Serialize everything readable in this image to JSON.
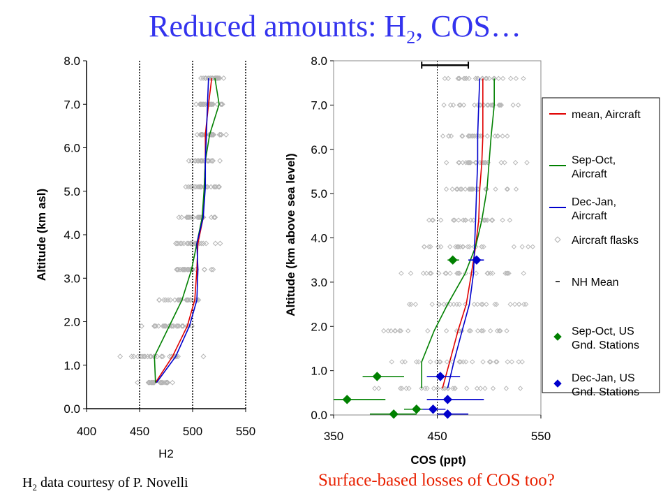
{
  "slide": {
    "title_main": "Reduced amounts: H",
    "title_sub": "2",
    "title_tail": ", COS…",
    "credit_h": "H",
    "credit_sub": "2",
    "credit_tail": " data courtesy of P. Novelli",
    "question": "Surface-based losses of COS too?"
  },
  "chart_data": [
    {
      "type": "line",
      "xlabel": "H2",
      "ylabel": "Altitude (km asl)",
      "xlim": [
        400,
        550
      ],
      "ylim": [
        0,
        8
      ],
      "xticks": [
        "400",
        "450",
        "500",
        "550"
      ],
      "yticks": [
        "0.0",
        "1.0",
        "2.0",
        "3.0",
        "4.0",
        "5.0",
        "6.0",
        "7.0",
        "8.0"
      ],
      "vlines": [
        450,
        500,
        550
      ],
      "series": [
        {
          "color": "#e00000",
          "y": [
            0.6,
            1.2,
            1.9,
            2.5,
            3.2,
            3.8,
            4.4,
            5.1,
            5.7,
            6.3,
            7.0,
            7.6
          ],
          "x": [
            465,
            481,
            495,
            502,
            504,
            505,
            510,
            511,
            512,
            512,
            515,
            518
          ]
        },
        {
          "color": "#008000",
          "y": [
            0.6,
            1.2,
            1.9,
            2.5,
            3.2,
            3.8,
            4.4,
            5.1,
            5.7,
            6.3,
            7.0,
            7.6
          ],
          "x": [
            465,
            464,
            478,
            490,
            499,
            504,
            509,
            511,
            512,
            516,
            525,
            521
          ]
        },
        {
          "color": "#0000cc",
          "y": [
            0.6,
            1.2,
            1.9,
            2.5,
            3.2,
            3.8,
            4.4,
            5.1,
            5.7,
            6.3,
            7.0,
            7.6
          ],
          "x": [
            466,
            484,
            497,
            504,
            505,
            504,
            510,
            512,
            512,
            513,
            514,
            515
          ]
        }
      ],
      "flask_levels": [
        0.6,
        1.2,
        1.9,
        2.5,
        3.2,
        3.8,
        4.4,
        5.1,
        5.7,
        6.3,
        7.0,
        7.6
      ],
      "flask_centers": [
        470,
        470,
        478,
        490,
        500,
        503,
        508,
        511,
        512,
        515,
        516,
        518
      ],
      "flask_spread": [
        30,
        40,
        28,
        25,
        22,
        24,
        26,
        20,
        18,
        20,
        16,
        12
      ]
    },
    {
      "type": "line",
      "xlabel": "COS (ppt)",
      "ylabel": "Altitude (km above sea level)",
      "xlim": [
        350,
        550
      ],
      "ylim": [
        0,
        8
      ],
      "xticks": [
        "350",
        "450",
        "550"
      ],
      "yticks": [
        "0.0",
        "1.0",
        "2.0",
        "3.0",
        "4.0",
        "5.0",
        "6.0",
        "7.0",
        "8.0"
      ],
      "vline": 450,
      "nh_mean_bar": {
        "y": 7.9,
        "x": [
          435,
          480
        ]
      },
      "series": [
        {
          "name": "mean, Aircraft",
          "color": "#e00000",
          "y": [
            0.6,
            1.2,
            1.9,
            2.5,
            3.2,
            3.8,
            4.4,
            5.1,
            5.7,
            6.3,
            7.0,
            7.6
          ],
          "x": [
            455,
            462,
            470,
            478,
            483,
            487,
            490,
            491,
            493,
            494,
            494,
            494
          ]
        },
        {
          "name": "Sep-Oct, Aircraft",
          "color": "#008000",
          "y": [
            0.6,
            1.2,
            1.9,
            2.5,
            3.2,
            3.8,
            4.4,
            5.1,
            5.7,
            6.3,
            7.0,
            7.6
          ],
          "x": [
            435,
            435,
            447,
            460,
            477,
            487,
            493,
            498,
            500,
            502,
            505,
            505
          ]
        },
        {
          "name": "Dec-Jan, Aircraft",
          "color": "#0000cc",
          "y": [
            0.6,
            1.2,
            1.9,
            2.5,
            3.2,
            3.8,
            4.4,
            5.1,
            5.7,
            6.3,
            7.0,
            7.6
          ],
          "x": [
            460,
            466,
            474,
            481,
            485,
            486,
            487,
            488,
            489,
            489,
            490,
            491
          ]
        }
      ],
      "flask_levels": [
        0.6,
        1.2,
        1.9,
        2.5,
        3.2,
        3.8,
        4.4,
        5.1,
        5.7,
        6.3,
        7.0,
        7.6
      ],
      "flask_centers": [
        460,
        465,
        470,
        478,
        482,
        485,
        488,
        490,
        492,
        492,
        492,
        492
      ],
      "flask_spread": [
        50,
        60,
        55,
        50,
        45,
        40,
        30,
        28,
        30,
        30,
        25,
        30
      ],
      "stations_sep_oct": [
        {
          "y": 0.87,
          "x": 392,
          "xerr": [
            378,
            418
          ]
        },
        {
          "y": 0.35,
          "x": 363,
          "xerr": [
            350,
            400
          ]
        },
        {
          "y": 0.13,
          "x": 430,
          "xerr": [
            418,
            445
          ]
        },
        {
          "y": 0.02,
          "x": 408,
          "xerr": [
            385,
            430
          ]
        },
        {
          "y": 3.5,
          "x": 465,
          "xerr": [
            460,
            471
          ]
        }
      ],
      "stations_dec_jan": [
        {
          "y": 0.87,
          "x": 453,
          "xerr": [
            440,
            472
          ]
        },
        {
          "y": 0.35,
          "x": 460,
          "xerr": [
            440,
            495
          ]
        },
        {
          "y": 0.13,
          "x": 446,
          "xerr": [
            436,
            458
          ]
        },
        {
          "y": 0.02,
          "x": 460,
          "xerr": [
            450,
            480
          ]
        },
        {
          "y": 3.5,
          "x": 488,
          "xerr": [
            480,
            495
          ]
        }
      ],
      "legend": {
        "position": "right",
        "items": [
          {
            "kind": "line",
            "color": "#e00000",
            "label1": "mean, Aircraft",
            "label2": ""
          },
          {
            "kind": "line",
            "color": "#008000",
            "label1": "Sep-Oct,",
            "label2": "Aircraft"
          },
          {
            "kind": "line",
            "color": "#0000cc",
            "label1": "Dec-Jan,",
            "label2": "Aircraft"
          },
          {
            "kind": "diamond-open",
            "color": "#b0b0b0",
            "label1": "Aircraft flasks",
            "label2": ""
          },
          {
            "kind": "dash",
            "color": "#000000",
            "label1": "NH Mean",
            "label2": ""
          },
          {
            "kind": "diamond",
            "color": "#008000",
            "label1": "Sep-Oct, US",
            "label2": "Gnd. Stations"
          },
          {
            "kind": "diamond",
            "color": "#0000cc",
            "label1": "Dec-Jan, US",
            "label2": "Gnd. Stations"
          }
        ]
      }
    }
  ]
}
